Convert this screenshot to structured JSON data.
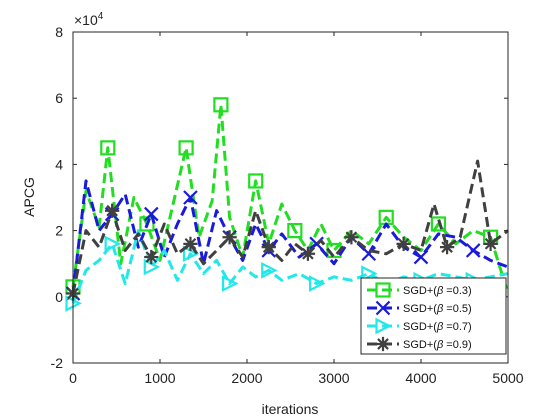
{
  "chart_data": {
    "type": "line",
    "title": "",
    "xlabel": "iterations",
    "ylabel": "APCG",
    "y_exponent_label": "×10",
    "y_exponent_power": "4",
    "xlim": [
      0,
      5000
    ],
    "ylim": [
      -2,
      8
    ],
    "xticks": [
      0,
      1000,
      2000,
      3000,
      4000,
      5000
    ],
    "yticks": [
      -2,
      0,
      2,
      4,
      6,
      8
    ],
    "y_scale_factor": 10000,
    "grid": false,
    "legend_position": "bottom-right",
    "series": [
      {
        "name": "SGD+(β =0.3)",
        "label_prefix": "SGD+(",
        "label_symbol": "β",
        "label_suffix": " =0.3)",
        "color": "#22dd22",
        "marker": "square",
        "x": [
          0,
          150,
          300,
          400,
          550,
          700,
          850,
          1000,
          1150,
          1300,
          1450,
          1600,
          1700,
          1800,
          1950,
          2100,
          2250,
          2400,
          2550,
          2700,
          2850,
          3000,
          3200,
          3400,
          3600,
          3800,
          4000,
          4200,
          4400,
          4600,
          4800,
          5000
        ],
        "y": [
          0.3,
          3.2,
          2.1,
          4.5,
          1.0,
          3.0,
          2.2,
          1.1,
          2.8,
          4.5,
          1.8,
          2.9,
          5.8,
          2.4,
          1.2,
          3.5,
          1.6,
          2.8,
          2.0,
          1.4,
          2.2,
          1.4,
          2.0,
          1.6,
          2.4,
          1.8,
          1.4,
          2.2,
          1.6,
          2.0,
          1.8,
          0.1
        ]
      },
      {
        "name": "SGD+(β =0.5)",
        "label_prefix": "SGD+(",
        "label_symbol": "β",
        "label_suffix": " =0.5)",
        "color": "#1a1adc",
        "marker": "x",
        "x": [
          0,
          150,
          300,
          450,
          600,
          750,
          900,
          1050,
          1200,
          1350,
          1500,
          1650,
          1800,
          1950,
          2100,
          2250,
          2400,
          2600,
          2800,
          3000,
          3200,
          3400,
          3600,
          3800,
          4000,
          4200,
          4400,
          4600,
          4800,
          5000
        ],
        "y": [
          0.1,
          3.5,
          2.0,
          2.5,
          3.1,
          1.5,
          2.5,
          1.2,
          2.2,
          3.0,
          1.0,
          2.6,
          1.8,
          1.1,
          2.2,
          1.4,
          1.9,
          1.2,
          1.6,
          1.0,
          1.8,
          1.3,
          2.2,
          1.5,
          1.2,
          1.9,
          1.8,
          1.4,
          1.1,
          0.9
        ]
      },
      {
        "name": "SGD+(β =0.7)",
        "label_prefix": "SGD+(",
        "label_symbol": "β",
        "label_suffix": " =0.7)",
        "color": "#22e8e8",
        "marker": "triangle-right",
        "x": [
          0,
          150,
          300,
          450,
          600,
          750,
          900,
          1050,
          1200,
          1350,
          1500,
          1650,
          1800,
          1950,
          2100,
          2250,
          2400,
          2600,
          2800,
          3000,
          3200,
          3400,
          3600,
          3800,
          4000,
          4200,
          4400,
          4600,
          4800,
          5000
        ],
        "y": [
          -0.2,
          0.8,
          1.1,
          1.6,
          0.4,
          2.0,
          0.9,
          1.4,
          0.5,
          1.3,
          0.7,
          1.1,
          0.4,
          0.9,
          0.6,
          0.8,
          0.5,
          0.7,
          0.4,
          0.6,
          0.5,
          0.7,
          0.4,
          0.6,
          0.5,
          0.7,
          0.6,
          0.5,
          0.6,
          0.7
        ]
      },
      {
        "name": "SGD+(β =0.9)",
        "label_prefix": "SGD+(",
        "label_symbol": "β",
        "label_suffix": " =0.9)",
        "color": "#404040",
        "marker": "star",
        "x": [
          0,
          150,
          300,
          450,
          600,
          750,
          900,
          1050,
          1200,
          1350,
          1500,
          1650,
          1800,
          1950,
          2100,
          2250,
          2400,
          2550,
          2700,
          2850,
          3000,
          3200,
          3400,
          3600,
          3800,
          4000,
          4150,
          4300,
          4450,
          4650,
          4800,
          5000
        ],
        "y": [
          0.1,
          2.0,
          1.5,
          2.6,
          1.4,
          1.9,
          1.2,
          2.2,
          1.3,
          1.6,
          1.0,
          1.4,
          1.8,
          1.2,
          2.6,
          1.5,
          1.1,
          1.6,
          1.3,
          1.7,
          1.2,
          1.8,
          1.4,
          1.3,
          1.6,
          1.4,
          2.8,
          1.5,
          1.8,
          4.1,
          1.6,
          2.0
        ]
      }
    ]
  }
}
